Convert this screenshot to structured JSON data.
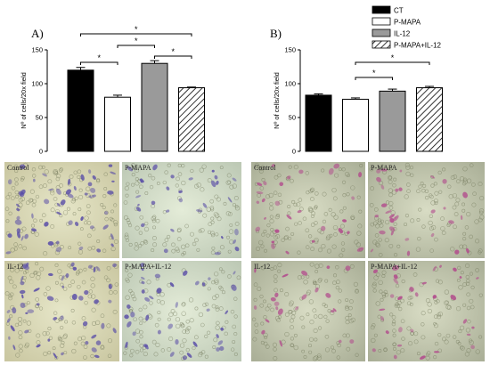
{
  "legend": {
    "entries": [
      {
        "label": "CT",
        "style": "solid",
        "color": "#000000"
      },
      {
        "label": "P-MAPA",
        "style": "white",
        "color": "#ffffff"
      },
      {
        "label": "IL-12",
        "style": "gray",
        "color": "#9a9a9a"
      },
      {
        "label": "P-MAPA+IL-12",
        "style": "hatch",
        "color": "#ffffff"
      }
    ]
  },
  "chart_data": [
    {
      "type": "bar",
      "panel_label": "A)",
      "ylabel": "Nº of cells/20x field",
      "ylim": [
        0,
        150
      ],
      "yticks": [
        0,
        50,
        100,
        150
      ],
      "categories": [
        "CT",
        "P-MAPA",
        "IL-12",
        "P-MAPA+IL-12"
      ],
      "values": [
        120,
        80,
        130,
        94
      ],
      "errors": [
        4,
        3,
        4,
        1
      ],
      "significance": [
        {
          "from": 0,
          "to": 1,
          "label": "*",
          "y": 147
        },
        {
          "from": 1,
          "to": 2,
          "label": "*",
          "y": 148
        },
        {
          "from": 2,
          "to": 3,
          "label": "*",
          "y": 147
        },
        {
          "from": 0,
          "to": 3,
          "label": "*",
          "y": 148
        }
      ]
    },
    {
      "type": "bar",
      "panel_label": "B)",
      "ylabel": "Nº of cells/20x field",
      "ylim": [
        0,
        150
      ],
      "yticks": [
        0,
        50,
        100,
        150
      ],
      "categories": [
        "CT",
        "P-MAPA",
        "IL-12",
        "P-MAPA+IL-12"
      ],
      "values": [
        83,
        77,
        89,
        94
      ],
      "errors": [
        2,
        2,
        3,
        2
      ],
      "significance": [
        {
          "from": 1,
          "to": 2,
          "label": "*",
          "y": 148
        },
        {
          "from": 1,
          "to": 3,
          "label": "*",
          "y": 148
        }
      ]
    }
  ],
  "micrographs": {
    "left": [
      "Control",
      "P-MAPA",
      "IL-12",
      "P-MAPA+IL-12"
    ],
    "right": [
      "Control",
      "P-MAPA",
      "IL-12",
      "P-MAPA+IL-12"
    ]
  },
  "colors": {
    "bar_ct": "#000000",
    "bar_pmapa": "#ffffff",
    "bar_il12": "#9a9a9a",
    "stain_left": "#5b4fa8",
    "stain_right": "#b24a8c"
  }
}
